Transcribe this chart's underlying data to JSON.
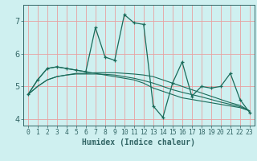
{
  "xlabel": "Humidex (Indice chaleur)",
  "bg_color": "#cff0f0",
  "plot_bg_color": "#cff0f0",
  "grid_color": "#e8a0a0",
  "line_color": "#1a6b5a",
  "axis_color": "#336666",
  "xlim": [
    -0.5,
    23.5
  ],
  "ylim": [
    3.8,
    7.5
  ],
  "yticks": [
    4,
    5,
    6,
    7
  ],
  "xticks": [
    0,
    1,
    2,
    3,
    4,
    5,
    6,
    7,
    8,
    9,
    10,
    11,
    12,
    13,
    14,
    15,
    16,
    17,
    18,
    19,
    20,
    21,
    22,
    23
  ],
  "series": [
    [
      4.75,
      5.2,
      5.55,
      5.6,
      5.55,
      5.5,
      5.45,
      6.8,
      5.9,
      5.8,
      7.2,
      6.95,
      6.9,
      4.4,
      4.05,
      5.1,
      5.75,
      4.7,
      5.0,
      4.95,
      5.0,
      5.4,
      4.6,
      4.2
    ],
    [
      4.75,
      5.2,
      5.55,
      5.6,
      5.55,
      5.5,
      5.45,
      5.4,
      5.35,
      5.3,
      5.25,
      5.2,
      5.1,
      4.95,
      4.85,
      4.75,
      4.65,
      4.6,
      4.55,
      4.5,
      4.45,
      4.4,
      4.35,
      4.25
    ],
    [
      4.75,
      5.0,
      5.2,
      5.3,
      5.35,
      5.4,
      5.4,
      5.42,
      5.42,
      5.42,
      5.4,
      5.38,
      5.35,
      5.3,
      5.2,
      5.1,
      5.0,
      4.9,
      4.8,
      4.7,
      4.6,
      4.5,
      4.42,
      4.25
    ],
    [
      4.75,
      5.0,
      5.2,
      5.3,
      5.35,
      5.38,
      5.38,
      5.38,
      5.37,
      5.35,
      5.3,
      5.25,
      5.18,
      5.1,
      5.0,
      4.9,
      4.82,
      4.75,
      4.68,
      4.6,
      4.52,
      4.45,
      4.38,
      4.25
    ]
  ]
}
